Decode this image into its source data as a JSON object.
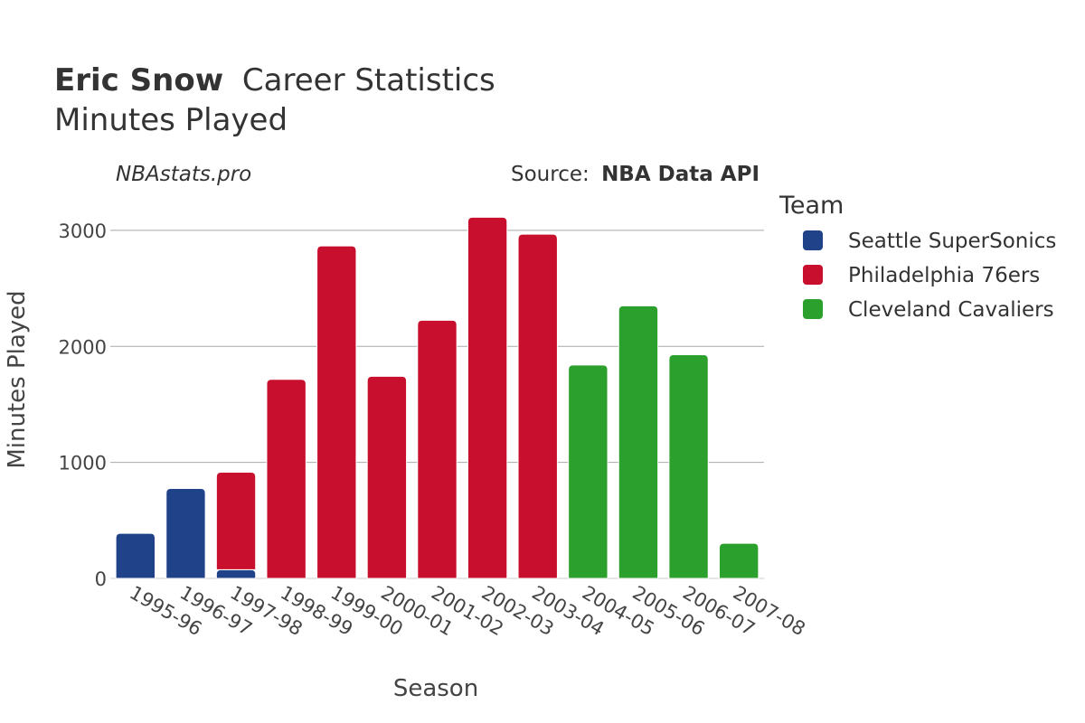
{
  "header": {
    "player_name": "Eric Snow",
    "title_suffix": "Career Statistics",
    "subtitle": "Minutes Played"
  },
  "credits": {
    "site": "NBAstats.pro",
    "source_prefix": "Source:",
    "source_name": "NBA Data API"
  },
  "legend": {
    "title": "Team"
  },
  "chart_data": {
    "type": "bar",
    "stacked": true,
    "title": "Eric Snow Career Statistics",
    "subtitle": "Minutes Played",
    "xlabel": "Season",
    "ylabel": "Minutes Played",
    "ylim": [
      0,
      3350
    ],
    "yticks": [
      0,
      1000,
      2000,
      3000
    ],
    "grid": true,
    "legend_position": "right",
    "categories": [
      "1995-96",
      "1996-97",
      "1997-98",
      "1998-99",
      "1999-00",
      "2000-01",
      "2001-02",
      "2002-03",
      "2003-04",
      "2004-05",
      "2005-06",
      "2006-07",
      "2007-08"
    ],
    "series": [
      {
        "name": "Seattle SuperSonics",
        "color": "#1f4289",
        "values": [
          389,
          775,
          75,
          0,
          0,
          0,
          0,
          0,
          0,
          0,
          0,
          0,
          0
        ]
      },
      {
        "name": "Philadelphia 76ers",
        "color": "#c8102e",
        "values": [
          0,
          0,
          840,
          1716,
          2866,
          1742,
          2225,
          3113,
          2967,
          0,
          0,
          0,
          0
        ]
      },
      {
        "name": "Cleveland Cavaliers",
        "color": "#2ca02c",
        "values": [
          0,
          0,
          0,
          0,
          0,
          0,
          0,
          0,
          0,
          1840,
          2350,
          1928,
          303
        ]
      }
    ]
  }
}
